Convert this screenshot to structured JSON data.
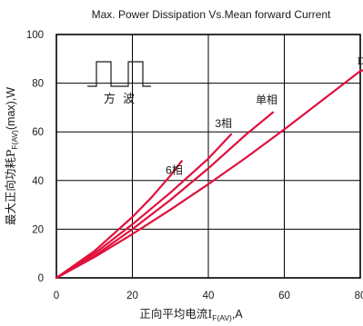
{
  "chart_data": {
    "type": "line",
    "title": "Max. Power Dissipation Vs.Mean forward Current",
    "xlabel": {
      "main": "正向平均电流I",
      "sub": "F(AV)",
      "suffix": ",A"
    },
    "ylabel": {
      "main": "最大正向功耗P",
      "sub": "F(AV)",
      "suffix": "(max),W"
    },
    "xlim": [
      0,
      80
    ],
    "ylim": [
      0,
      100
    ],
    "xticks": [
      0,
      20,
      40,
      60,
      80
    ],
    "yticks": [
      0,
      20,
      40,
      60,
      80,
      100
    ],
    "xtick_labels": [
      "0",
      "20",
      "40",
      "60",
      "80"
    ],
    "ytick_labels": [
      "0",
      "20",
      "40",
      "60",
      "80",
      "100"
    ],
    "grid": {
      "x": true,
      "y": true
    },
    "line_color": "#e0103c",
    "inset_label": "方  波",
    "series": [
      {
        "name": "DC",
        "x": [
          0,
          10,
          20,
          30,
          40,
          50,
          60,
          70,
          80,
          85
        ],
        "y": [
          0,
          8.5,
          18,
          28,
          38.5,
          49.5,
          61,
          73,
          85,
          87
        ]
      },
      {
        "name": "单相",
        "x": [
          0,
          10,
          20,
          30,
          40,
          50,
          57
        ],
        "y": [
          0,
          9,
          20,
          32,
          45,
          59,
          68
        ]
      },
      {
        "name": "3相",
        "x": [
          0,
          10,
          20,
          30,
          40,
          46
        ],
        "y": [
          0,
          10,
          22,
          35,
          49,
          59
        ]
      },
      {
        "name": "6相",
        "x": [
          0,
          10,
          20,
          25,
          30,
          33
        ],
        "y": [
          0,
          11,
          25,
          33,
          42,
          48
        ]
      }
    ]
  }
}
